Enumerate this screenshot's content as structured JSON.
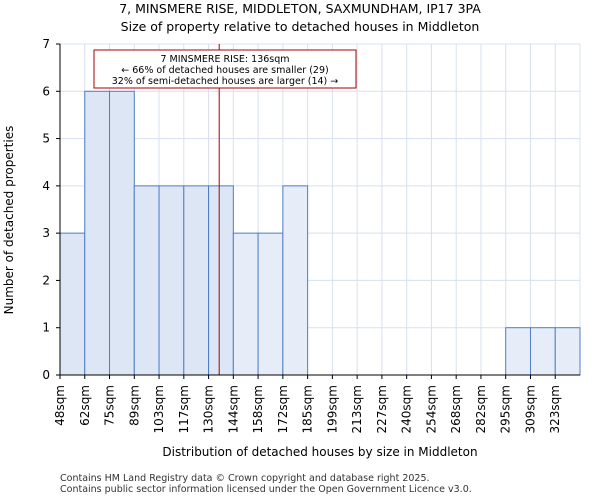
{
  "chart_data": {
    "type": "bar",
    "title": "7, MINSMERE RISE, MIDDLETON, SAXMUNDHAM, IP17 3PA",
    "subtitle": "Size of property relative to detached houses in Middleton",
    "xlabel": "Distribution of detached houses by size in Middleton",
    "ylabel": "Number of detached properties",
    "categories": [
      "48sqm",
      "62sqm",
      "75sqm",
      "89sqm",
      "103sqm",
      "117sqm",
      "130sqm",
      "144sqm",
      "158sqm",
      "172sqm",
      "185sqm",
      "199sqm",
      "213sqm",
      "227sqm",
      "240sqm",
      "254sqm",
      "268sqm",
      "282sqm",
      "295sqm",
      "309sqm",
      "323sqm"
    ],
    "values": [
      3,
      6,
      6,
      4,
      4,
      4,
      4,
      3,
      3,
      4,
      0,
      0,
      0,
      0,
      0,
      0,
      0,
      0,
      1,
      1,
      1
    ],
    "highlight_count": 7,
    "ylim": [
      0,
      7
    ],
    "yticks": [
      0,
      1,
      2,
      3,
      4,
      5,
      6,
      7
    ],
    "marker_value": 136,
    "annotation": {
      "line1": "7 MINSMERE RISE: 136sqm",
      "line2": "← 66% of detached houses are smaller (29)",
      "line3": "32% of semi-detached houses are larger (14) →"
    },
    "colors": {
      "bar_highlight": "#dce6f5",
      "bar_normal": "#e7edf8",
      "bar_edge": "#4f7ec6",
      "marker": "#aa0000",
      "grid": "#d8e0ef"
    }
  },
  "footer": {
    "line1": "Contains HM Land Registry data © Crown copyright and database right 2025.",
    "line2": "Contains public sector information licensed under the Open Government Licence v3.0."
  }
}
